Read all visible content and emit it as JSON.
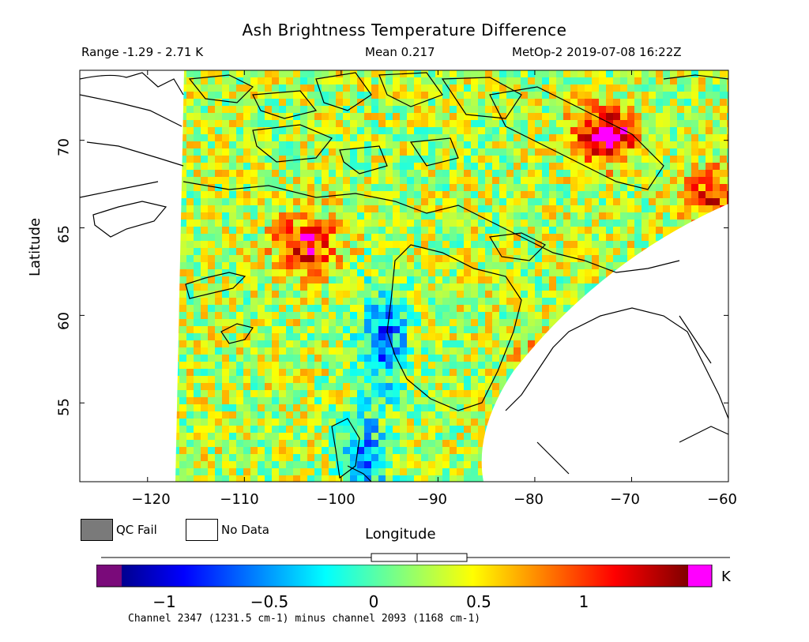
{
  "header": {
    "title": "Ash Brightness Temperature Difference",
    "range": "Range -1.29 - 2.71 K",
    "mean": "Mean 0.217",
    "satellite": "MetOp-2 2019-07-08 16:22Z"
  },
  "axes": {
    "ylabel": "Latitude",
    "xlabel": "Longitude",
    "yticks": [
      "55",
      "60",
      "65",
      "70"
    ],
    "xticks": [
      "−120",
      "−110",
      "−100",
      "−90",
      "−80",
      "−70",
      "−60"
    ]
  },
  "legend": {
    "qc_fail": "QC Fail",
    "no_data": "No Data"
  },
  "colorbar": {
    "ticks": [
      "−1",
      "−0.5",
      "0",
      "0.5",
      "1"
    ],
    "unit": "K",
    "qc_color": "#7a0a7a",
    "over_color": "#ff00ff"
  },
  "footer": "Channel 2347 (1231.5 cm-1) minus channel 2093 (1168 cm-1)",
  "chart_data": {
    "type": "heatmap",
    "title": "Ash Brightness Temperature Difference",
    "xlabel": "Longitude",
    "ylabel": "Latitude",
    "xlim": [
      -127,
      -60
    ],
    "ylim": [
      50.5,
      74
    ],
    "color_range": [
      -1.29,
      1.5
    ],
    "unit": "K",
    "stats": {
      "min": -1.29,
      "max": 2.71,
      "mean": 0.217
    },
    "hotspots": [
      {
        "lon": -104,
        "lat": 64.3,
        "value": 1.2
      },
      {
        "lon": -78,
        "lat": 57.5,
        "value": 1.2
      },
      {
        "lon": -73,
        "lat": 70.5,
        "value": 1.45
      },
      {
        "lon": -62,
        "lat": 67,
        "value": 1.1
      }
    ],
    "coldspots": [
      {
        "lon": -96,
        "lat": 59,
        "value": -0.7
      },
      {
        "lon": -98,
        "lat": 52,
        "value": -0.5
      }
    ]
  }
}
